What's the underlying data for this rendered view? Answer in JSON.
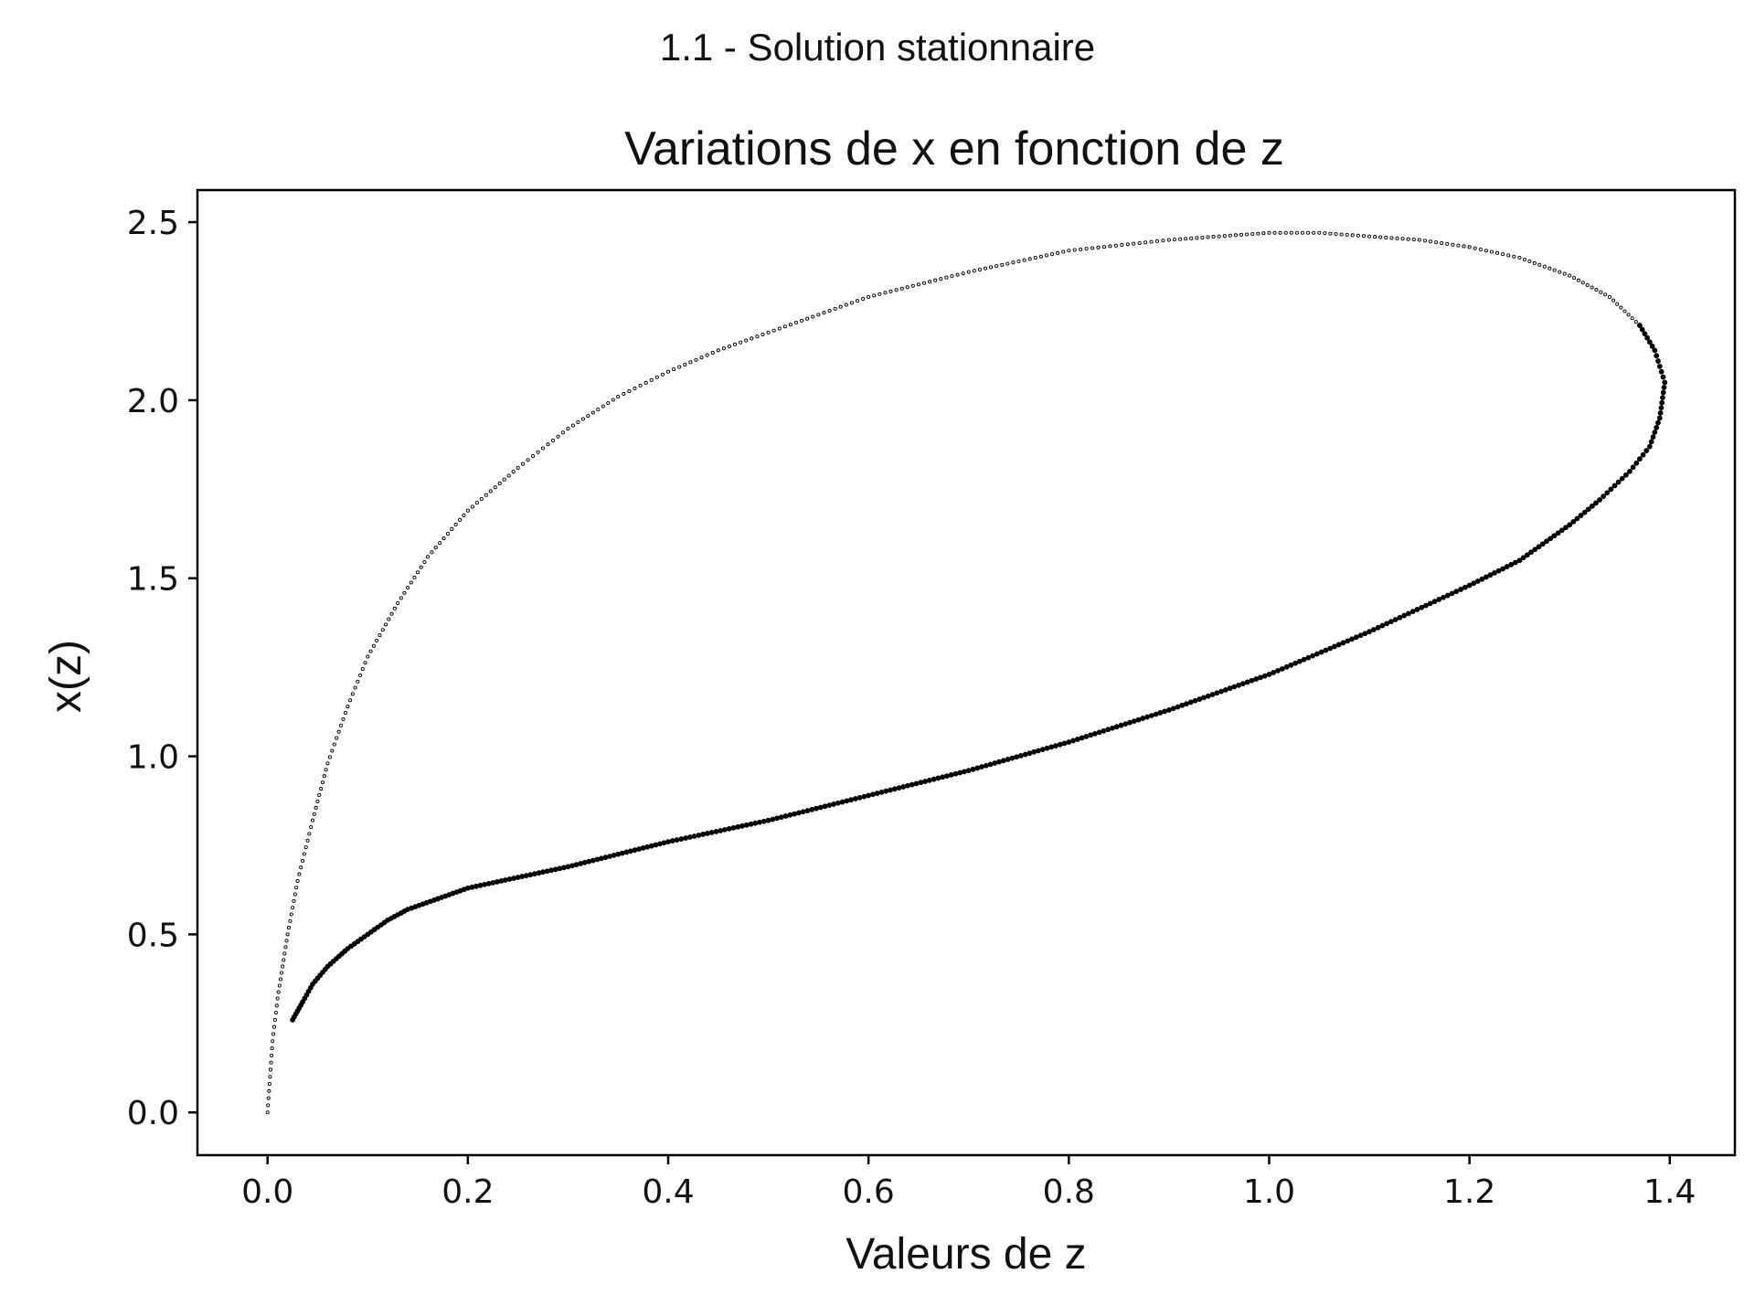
{
  "suptitle": "1.1 - Solution stationnaire",
  "chart_data": {
    "type": "scatter",
    "title": "Variations de x en fonction de z",
    "xlabel": "Valeurs de z",
    "ylabel": "x(z)",
    "xlim": [
      -0.07,
      1.465
    ],
    "ylim": [
      -0.12,
      2.59
    ],
    "xticks": [
      0.0,
      0.2,
      0.4,
      0.6,
      0.8,
      1.0,
      1.2,
      1.4
    ],
    "xtick_labels": [
      "0.0",
      "0.2",
      "0.4",
      "0.6",
      "0.8",
      "1.0",
      "1.2",
      "1.4"
    ],
    "yticks": [
      0.0,
      0.5,
      1.0,
      1.5,
      2.0,
      2.5
    ],
    "ytick_labels": [
      "0.0",
      "0.5",
      "1.0",
      "1.5",
      "2.0",
      "2.5"
    ],
    "grid": false,
    "marker_color": "#000000",
    "series": [
      {
        "points": [
          [
            0.0,
            0.0
          ],
          [
            0.005,
            0.2
          ],
          [
            0.01,
            0.32
          ],
          [
            0.02,
            0.5
          ],
          [
            0.03,
            0.65
          ],
          [
            0.045,
            0.82
          ],
          [
            0.06,
            0.98
          ],
          [
            0.08,
            1.14
          ],
          [
            0.1,
            1.28
          ],
          [
            0.13,
            1.43
          ],
          [
            0.16,
            1.56
          ],
          [
            0.2,
            1.69
          ],
          [
            0.25,
            1.81
          ],
          [
            0.3,
            1.92
          ],
          [
            0.35,
            2.01
          ],
          [
            0.4,
            2.08
          ],
          [
            0.45,
            2.14
          ],
          [
            0.5,
            2.19
          ],
          [
            0.6,
            2.29
          ],
          [
            0.7,
            2.36
          ],
          [
            0.8,
            2.42
          ],
          [
            0.9,
            2.45
          ],
          [
            1.0,
            2.47
          ],
          [
            1.05,
            2.47
          ],
          [
            1.1,
            2.46
          ],
          [
            1.15,
            2.45
          ],
          [
            1.2,
            2.43
          ],
          [
            1.25,
            2.4
          ],
          [
            1.3,
            2.35
          ],
          [
            1.34,
            2.29
          ],
          [
            1.37,
            2.21
          ],
          [
            1.385,
            2.14
          ],
          [
            1.395,
            2.05
          ],
          [
            1.39,
            1.95
          ],
          [
            1.38,
            1.87
          ],
          [
            1.36,
            1.8
          ],
          [
            1.33,
            1.72
          ],
          [
            1.3,
            1.65
          ],
          [
            1.25,
            1.55
          ],
          [
            1.2,
            1.48
          ],
          [
            1.1,
            1.35
          ],
          [
            1.0,
            1.23
          ],
          [
            0.9,
            1.13
          ],
          [
            0.8,
            1.04
          ],
          [
            0.7,
            0.96
          ],
          [
            0.6,
            0.89
          ],
          [
            0.5,
            0.82
          ],
          [
            0.4,
            0.76
          ],
          [
            0.3,
            0.69
          ],
          [
            0.25,
            0.66
          ],
          [
            0.2,
            0.63
          ],
          [
            0.17,
            0.6
          ],
          [
            0.14,
            0.57
          ],
          [
            0.12,
            0.54
          ],
          [
            0.1,
            0.5
          ],
          [
            0.08,
            0.46
          ],
          [
            0.06,
            0.41
          ],
          [
            0.045,
            0.36
          ],
          [
            0.035,
            0.31
          ],
          [
            0.025,
            0.26
          ]
        ]
      }
    ]
  }
}
